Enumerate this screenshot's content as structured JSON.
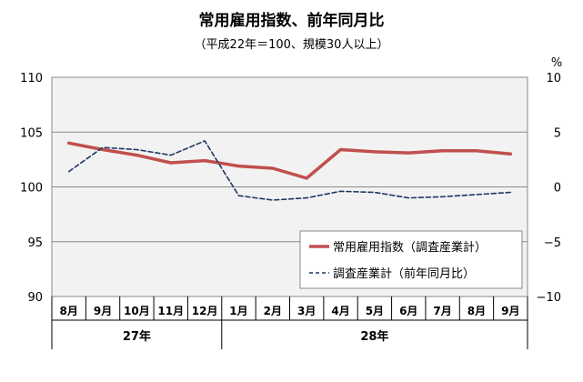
{
  "chart_data": {
    "type": "line",
    "title": "常用雇用指数、前年同月比",
    "subtitle": "（平成22年＝100、規模30人以上）",
    "categories": [
      "8月",
      "9月",
      "10月",
      "11月",
      "12月",
      "1月",
      "2月",
      "3月",
      "4月",
      "5月",
      "6月",
      "7月",
      "8月",
      "9月"
    ],
    "groups": [
      {
        "label": "27年",
        "start": 0,
        "end": 4
      },
      {
        "label": "28年",
        "start": 5,
        "end": 13
      }
    ],
    "y_left": {
      "min": 90,
      "max": 110,
      "ticks": [
        90,
        95,
        100,
        105,
        110
      ]
    },
    "y_right": {
      "min": -10,
      "max": 10,
      "ticks": [
        -10,
        -5,
        0,
        5,
        10
      ],
      "unit": "%"
    },
    "grid": true,
    "legend_position": "bottom-right",
    "series": [
      {
        "name": "常用雇用指数（調査産業計）",
        "axis": "left",
        "style": "solid",
        "color": "#c0504d",
        "values": [
          104.0,
          103.4,
          102.9,
          102.2,
          102.4,
          101.9,
          101.7,
          100.8,
          103.4,
          103.2,
          103.1,
          103.3,
          103.3,
          103.0
        ]
      },
      {
        "name": "調査産業計（前年同月比）",
        "axis": "right",
        "style": "dashed",
        "color": "#1f3864",
        "values": [
          1.4,
          3.6,
          3.4,
          2.9,
          4.2,
          -0.8,
          -1.2,
          -1.0,
          -0.4,
          -0.5,
          -1.0,
          -0.9,
          -0.7,
          -0.5
        ]
      }
    ]
  }
}
